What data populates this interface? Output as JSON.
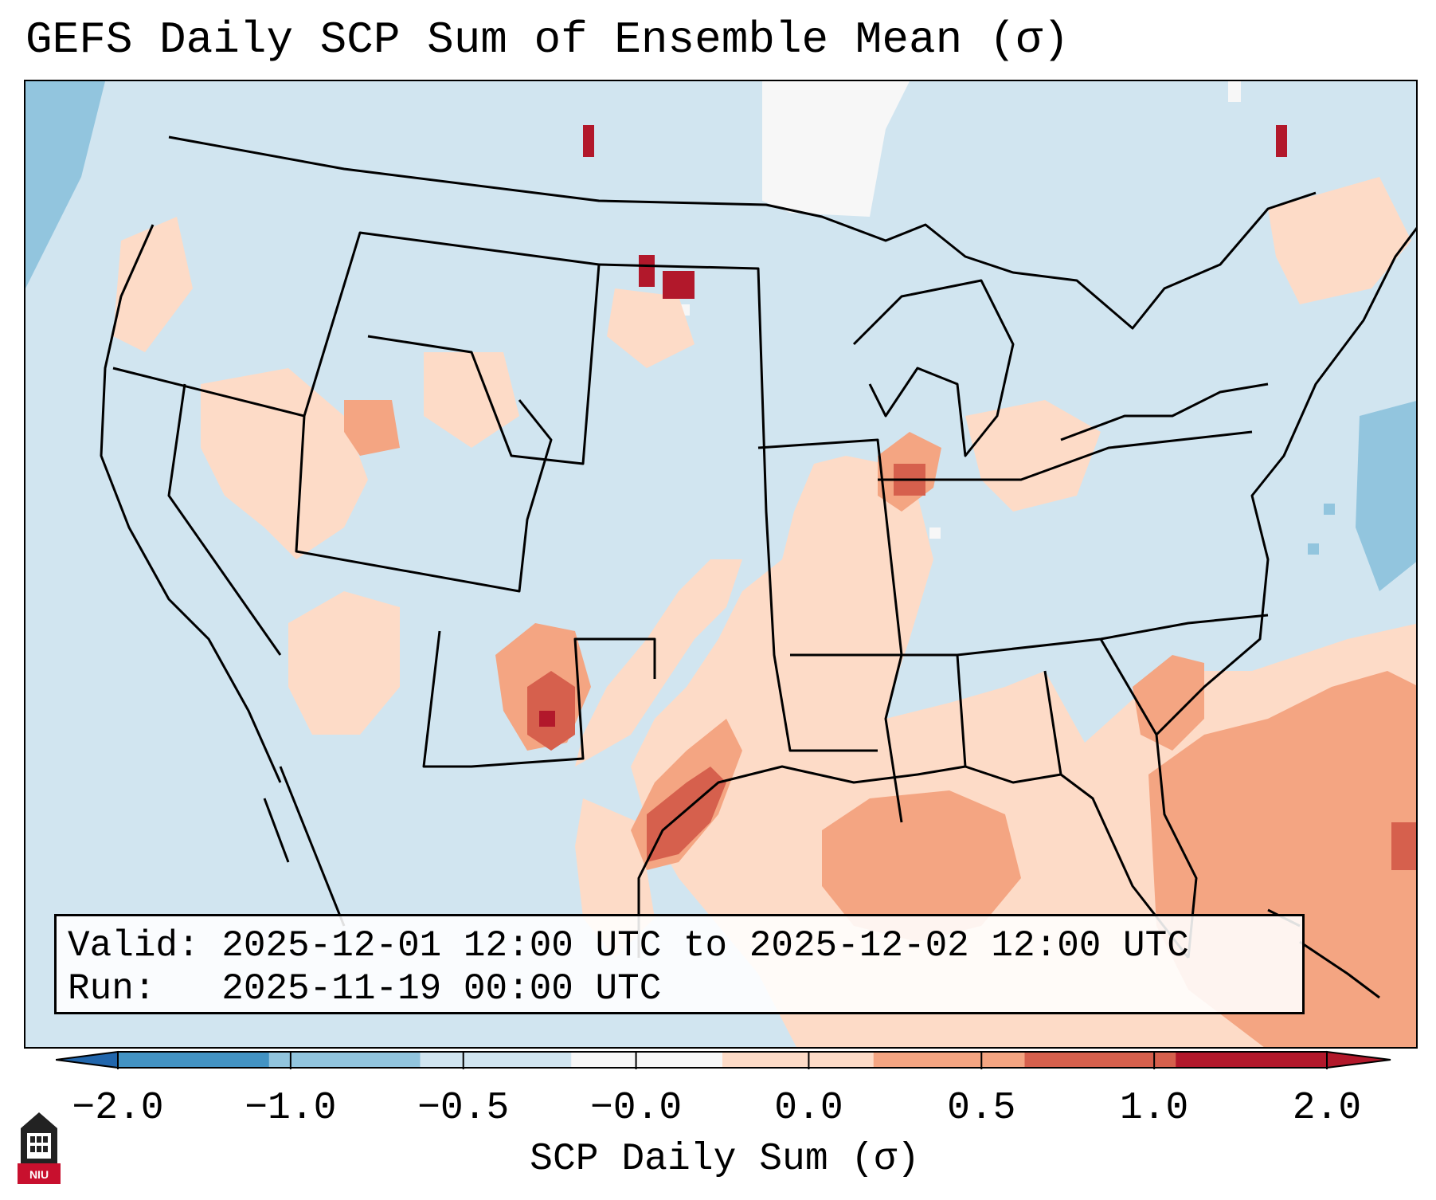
{
  "title": "GEFS Daily SCP Sum of Ensemble Mean (σ)",
  "info": {
    "valid_line": "Valid: 2025-12-01 12:00 UTC to 2025-12-02 12:00 UTC",
    "run_line": "Run:   2025-11-19 00:00 UTC"
  },
  "colorbar": {
    "label": "SCP Daily Sum (σ)",
    "ticks": [
      "−2.0",
      "−1.0",
      "−0.5",
      "−0.0",
      "0.0",
      "0.5",
      "1.0",
      "2.0"
    ],
    "colors": [
      "#4393c3",
      "#92c5de",
      "#d1e5f0",
      "#f7f7f7",
      "#fddbc7",
      "#f4a582",
      "#d6604d",
      "#b2182b"
    ],
    "under_color": "#2166ac",
    "over_color": "#b2182b"
  },
  "logo": {
    "text": "NIU",
    "icon": "niu-tower-logo"
  },
  "map_layer": {
    "background_color": "#d1e5f0",
    "regions": [
      {
        "name": "gulf-southeast-positive",
        "level": "0.0 to 0.5"
      },
      {
        "name": "atlantic-moderate",
        "level": "0.5 to 1.0"
      },
      {
        "name": "new-mexico-core",
        "level": "1.0 to 2.0"
      },
      {
        "name": "north-dakota-core",
        "level": "1.0 to 2.0"
      },
      {
        "name": "atlantic-negative",
        "level": "-1.0 to -0.5"
      }
    ]
  }
}
